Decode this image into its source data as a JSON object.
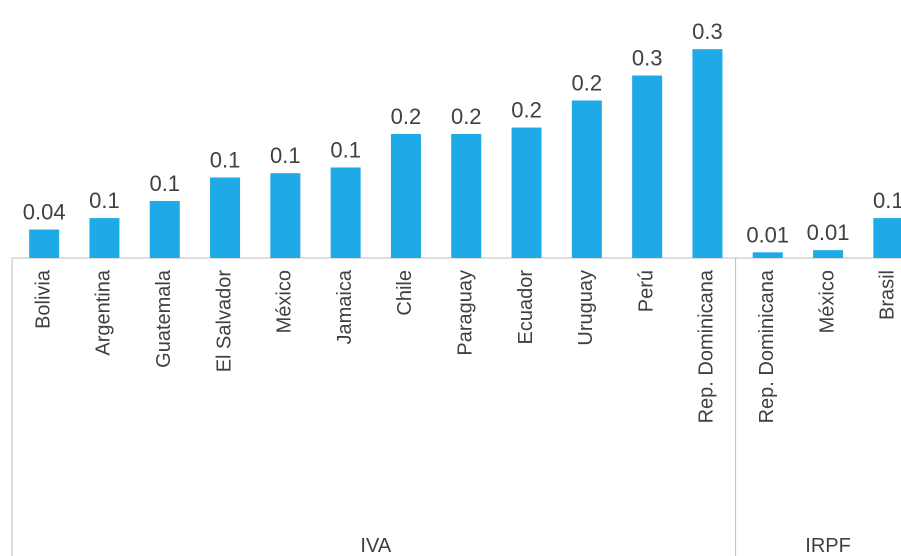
{
  "chart_data": {
    "type": "bar",
    "color": "#1eaae7",
    "ylim": [
      0,
      0.362
    ],
    "groups": [
      {
        "name": "IVA",
        "categories": [
          "Bolivia",
          "Argentina",
          "Guatemala",
          "El Salvador",
          "México",
          "Jamaica",
          "Chile",
          "Paraguay",
          "Ecuador",
          "Uruguay",
          "Perú",
          "Rep. Dominicana"
        ],
        "values": [
          0.04,
          0.056,
          0.08,
          0.113,
          0.119,
          0.127,
          0.174,
          0.174,
          0.183,
          0.221,
          0.256,
          0.293
        ],
        "value_labels": [
          "0.04",
          "0.1",
          "0.1",
          "0.1",
          "0.1",
          "0.1",
          "0.2",
          "0.2",
          "0.2",
          "0.2",
          "0.3",
          "0.3"
        ]
      },
      {
        "name": "IRPF",
        "categories": [
          "Rep. Dominicana",
          "México",
          "Brasil"
        ],
        "values": [
          0.008,
          0.011,
          0.056
        ],
        "value_labels": [
          "0.01",
          "0.01",
          "0.1"
        ]
      }
    ]
  }
}
